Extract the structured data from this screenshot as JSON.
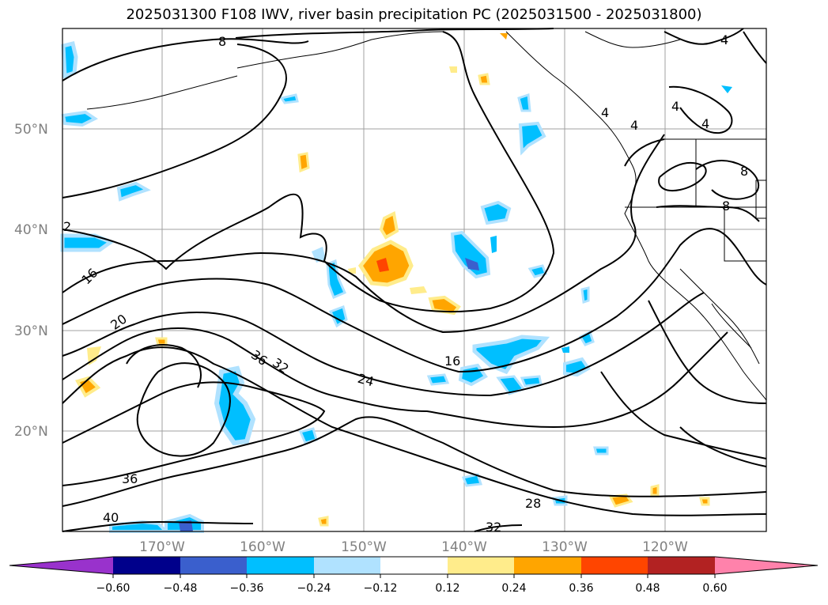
{
  "title": "2025031300 F108 IWV, river basin precipitation PC (2025031500 - 2025031800)",
  "map": {
    "lat_labels": [
      "50°N",
      "40°N",
      "30°N",
      "20°N"
    ],
    "lon_labels": [
      "170°W",
      "160°W",
      "150°W",
      "140°W",
      "130°W",
      "120°W"
    ],
    "contour_labels": [
      "8",
      "4",
      "4",
      "4",
      "4",
      "4",
      "8",
      "8",
      "2",
      "16",
      "20",
      "36",
      "32",
      "24",
      "16",
      "36",
      "40",
      "28",
      "32"
    ]
  },
  "colorbar": {
    "ticks": [
      "−0.60",
      "−0.48",
      "−0.36",
      "−0.24",
      "−0.12",
      "0.12",
      "0.24",
      "0.36",
      "0.48",
      "0.60"
    ],
    "colors": [
      "#9932cc",
      "#00008b",
      "#3a5fcd",
      "#00bfff",
      "#b0e2ff",
      "#ffffff",
      "#ffec8b",
      "#ffa500",
      "#ff4500",
      "#b22222",
      "#ff82ab"
    ]
  }
}
